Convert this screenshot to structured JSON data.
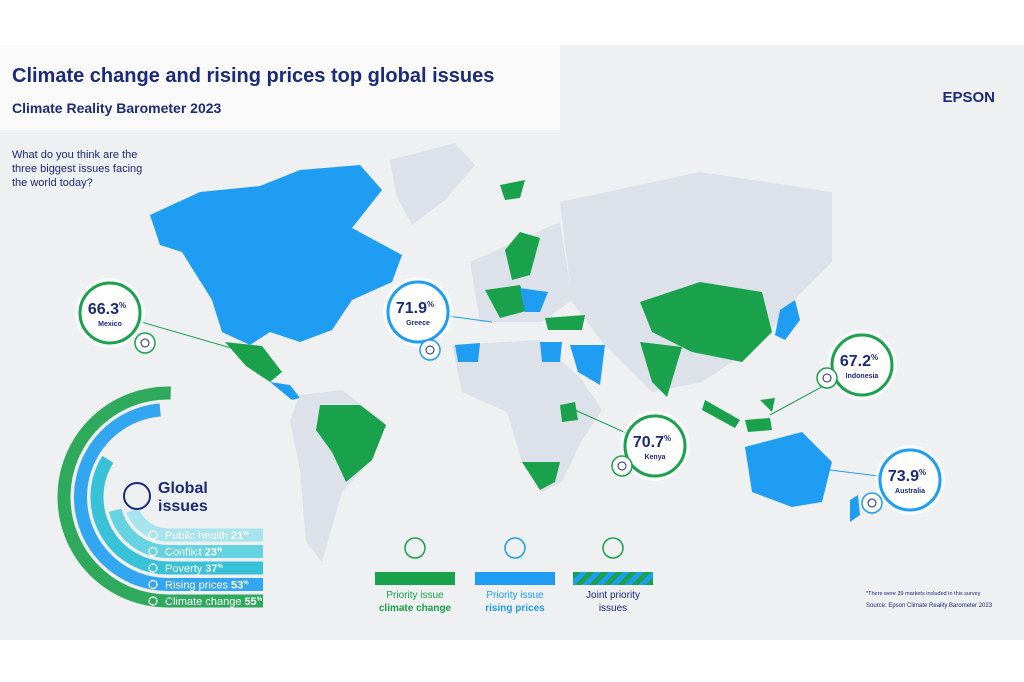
{
  "header": {
    "title": "Climate change and rising prices top global issues",
    "subtitle": "Climate Reality Barometer 2023",
    "brand": "EPSON",
    "question_lines": [
      "What do you think are the",
      "three biggest issues facing",
      "the world today?"
    ]
  },
  "unit": "%",
  "callouts": [
    {
      "value": 66.3,
      "country": "Mexico",
      "color": "#1aa14b"
    },
    {
      "value": 71.9,
      "country": "Greece",
      "color": "#1e9df2"
    },
    {
      "value": 67.2,
      "country": "Indonesia",
      "color": "#1aa14b"
    },
    {
      "value": 70.7,
      "country": "Kenya",
      "color": "#1aa14b"
    },
    {
      "value": 73.9,
      "country": "Australia",
      "color": "#1e9df2"
    }
  ],
  "global_issues": {
    "title_lines": [
      "Global",
      "issues"
    ],
    "items": [
      {
        "name": "Public health",
        "value": 21,
        "color": "#9fe2ec"
      },
      {
        "name": "Conflict",
        "value": 23,
        "color": "#55cfde"
      },
      {
        "name": "Poverty",
        "value": 37,
        "color": "#22bcd4"
      },
      {
        "name": "Rising prices",
        "value": 53,
        "color": "#1e9df2"
      },
      {
        "name": "Climate change",
        "value": 55,
        "color": "#1aa14b"
      }
    ]
  },
  "legend": [
    {
      "lines": [
        "Priority issue",
        "climate change"
      ],
      "color": "#1aa14b"
    },
    {
      "lines": [
        "Priority issue",
        "rising prices"
      ],
      "color": "#1e9df2"
    },
    {
      "lines": [
        "Joint priority",
        "issues"
      ],
      "color": "#505a7a"
    }
  ],
  "footnote": "*There were 39 markets included in this survey",
  "source": "Source: Epson Climate Reality Barometer 2023"
}
